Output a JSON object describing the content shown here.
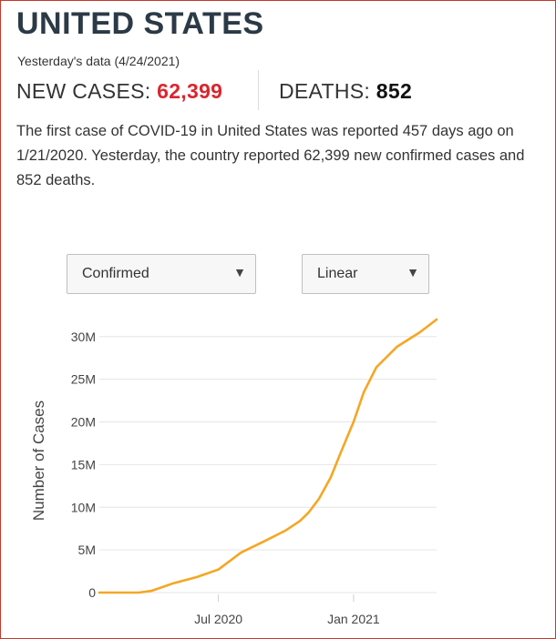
{
  "header": {
    "country": "UNITED STATES",
    "data_date": "Yesterday's data (4/24/2021)",
    "new_cases_label": "NEW CASES: ",
    "new_cases_value": "62,399",
    "deaths_label": "DEATHS: ",
    "deaths_value": "852"
  },
  "summary": {
    "p1": "The first case of ",
    "covid": "COVID-19",
    "p2": " in ",
    "country": "United States",
    "p3": " was reported 457 days ago on 1/21/2020. Yesterday, the country reported 62,399 new confirmed cases and 852 deaths."
  },
  "controls": {
    "metric_select": "Confirmed",
    "scale_select": "Linear",
    "caret": "▼"
  },
  "colors": {
    "line": "#f5a623",
    "accent_red": "#d9262e",
    "border": "#c0392b"
  },
  "chart_data": {
    "type": "line",
    "ylabel": "Number of Cases",
    "y_scale": "linear",
    "ylim": [
      0,
      32000000
    ],
    "yticks": [
      0,
      5000000,
      10000000,
      15000000,
      20000000,
      25000000,
      30000000
    ],
    "ytick_labels": [
      "0",
      "5M",
      "10M",
      "15M",
      "20M",
      "25M",
      "30M"
    ],
    "xlim": [
      "2020-01-21",
      "2021-04-24"
    ],
    "xticks": [
      "2020-07-01",
      "2021-01-01"
    ],
    "xtick_labels": [
      "Jul 2020",
      "Jan 2021"
    ],
    "grid": true,
    "series": [
      {
        "x": [
          "2020-01-21",
          "2020-03-01",
          "2020-03-15",
          "2020-04-01",
          "2020-05-01",
          "2020-06-01",
          "2020-07-01",
          "2020-08-01",
          "2020-09-01",
          "2020-10-01",
          "2020-10-20",
          "2020-11-01",
          "2020-11-15",
          "2020-12-01",
          "2020-12-15",
          "2021-01-01",
          "2021-01-15",
          "2021-02-01",
          "2021-03-01",
          "2021-04-01",
          "2021-04-24"
        ],
        "values": [
          0,
          100,
          200,
          200000,
          1100000,
          1800000,
          2700000,
          4700000,
          6000000,
          7300000,
          8400000,
          9400000,
          11000000,
          13500000,
          16500000,
          20000000,
          23500000,
          26400000,
          28800000,
          30500000,
          32000000
        ]
      }
    ]
  }
}
